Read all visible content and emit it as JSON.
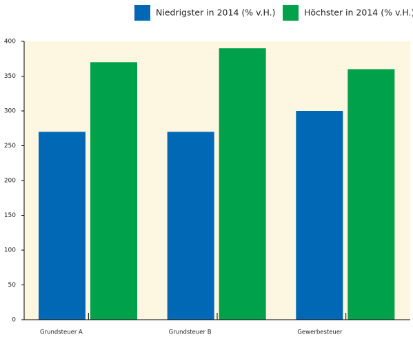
{
  "chart_data": {
    "type": "bar",
    "categories": [
      "Grundsteuer A",
      "Grundsteuer B",
      "Gewerbesteuer"
    ],
    "series": [
      {
        "name": "Niedrigster in 2014 (% v.H.)",
        "color": "#0068b4",
        "values": [
          270,
          270,
          300
        ]
      },
      {
        "name": "Höchster in 2014 (% v.H.)",
        "color": "#00a14b",
        "values": [
          370,
          390,
          360
        ]
      }
    ],
    "ylim": [
      0,
      400
    ],
    "yticks": [
      0,
      50,
      100,
      150,
      200,
      250,
      300,
      350,
      400
    ],
    "legend": "top-right",
    "background": "#fdf6e1"
  }
}
